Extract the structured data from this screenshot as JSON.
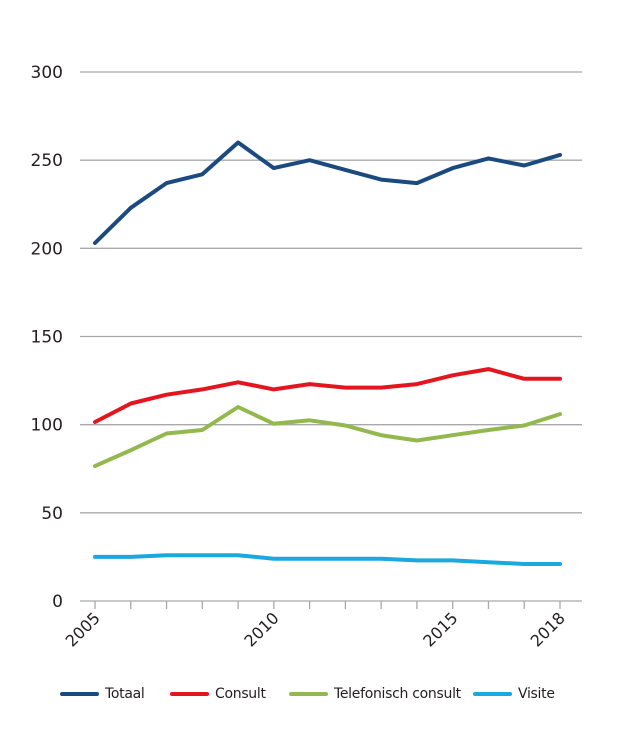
{
  "chart_data": {
    "type": "line",
    "title": "",
    "xlabel": "",
    "ylabel": "",
    "x": [
      2005,
      2006,
      2007,
      2008,
      2009,
      2010,
      2011,
      2012,
      2013,
      2014,
      2015,
      2016,
      2017,
      2018
    ],
    "x_tick_labels": [
      "2005",
      "2010",
      "2015",
      "2018"
    ],
    "x_tick_label_years": [
      2005,
      2010,
      2015,
      2018
    ],
    "ylim": [
      0,
      300
    ],
    "y_ticks": [
      0,
      50,
      100,
      150,
      200,
      250,
      300
    ],
    "y_tick_labels": [
      "0",
      "50",
      "100",
      "150",
      "200",
      "250",
      "300"
    ],
    "grid": "horizontal",
    "legend_placement": "bottom",
    "series": [
      {
        "name": "Totaal",
        "color": "#1b4a7f",
        "values": [
          203,
          223,
          237,
          242,
          260,
          245.5,
          250,
          244.5,
          239,
          237,
          245.5,
          251,
          247,
          253
        ]
      },
      {
        "name": "Consult",
        "color": "#e3161f",
        "values": [
          101.5,
          112,
          117,
          120,
          124,
          120,
          123,
          121,
          121,
          123,
          128,
          131.5,
          126,
          126
        ]
      },
      {
        "name": "Telefonisch consult",
        "color": "#93b84d",
        "values": [
          76.5,
          85.5,
          95,
          97,
          110,
          100.5,
          102.5,
          99.5,
          94,
          91,
          94,
          97,
          99.5,
          106
        ]
      },
      {
        "name": "Visite",
        "color": "#1aa8df",
        "values": [
          25,
          25,
          26,
          26,
          26,
          24,
          24,
          24,
          24,
          23,
          23,
          22,
          21,
          21
        ]
      }
    ]
  }
}
